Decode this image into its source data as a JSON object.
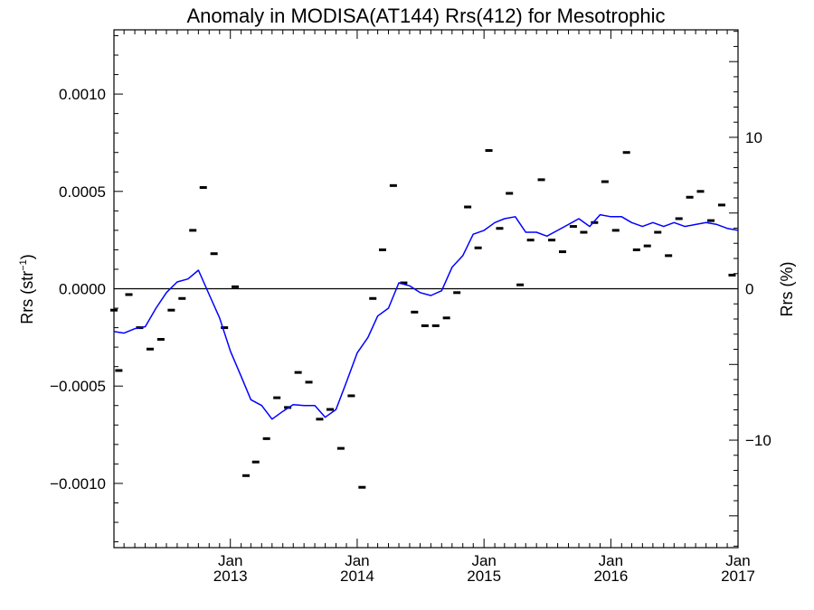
{
  "chart_data": {
    "type": "line",
    "title": "Anomaly in MODISA(AT144) Rrs(412) for Mesotrophic",
    "ylabel_left": "Rrs (str",
    "ylabel_left_sup": "−1",
    "ylabel_left_tail": ")",
    "ylabel_right": "Rrs (%)",
    "x_axis": {
      "type": "date",
      "min": "2012-02-01",
      "max": "2017-01-01"
    },
    "ylim_left": [
      -0.00133,
      0.00133
    ],
    "ylim_right": [
      -17.1,
      17.1
    ],
    "x_ticks": [
      {
        "date": "2013-01-01",
        "month": "Jan",
        "year": "2013"
      },
      {
        "date": "2014-01-01",
        "month": "Jan",
        "year": "2014"
      },
      {
        "date": "2015-01-01",
        "month": "Jan",
        "year": "2015"
      },
      {
        "date": "2016-01-01",
        "month": "Jan",
        "year": "2016"
      },
      {
        "date": "2017-01-01",
        "month": "Jan",
        "year": "2017"
      }
    ],
    "y_ticks_left": [
      {
        "value": 0.001,
        "label": "0.0010"
      },
      {
        "value": 0.0005,
        "label": "0.0005"
      },
      {
        "value": 0.0,
        "label": "0.0000"
      },
      {
        "value": -0.0005,
        "label": "−0.0005"
      },
      {
        "value": -0.001,
        "label": "−0.0010"
      }
    ],
    "y_ticks_right": [
      {
        "value": 10,
        "label": "10"
      },
      {
        "value": 0,
        "label": "0"
      },
      {
        "value": -10,
        "label": "−10"
      }
    ],
    "zero_line": true,
    "grid": false,
    "colors": {
      "line": "#0000ff",
      "points": "#000000",
      "axes": "#000000"
    },
    "series": [
      {
        "style": "points",
        "points": [
          {
            "x": "2012-02-01",
            "y": -0.00011
          },
          {
            "x": "2012-02-15",
            "y": -0.00042
          },
          {
            "x": "2012-03-15",
            "y": -3e-05
          },
          {
            "x": "2012-04-15",
            "y": -0.0002
          },
          {
            "x": "2012-05-15",
            "y": -0.00031
          },
          {
            "x": "2012-06-15",
            "y": -0.00026
          },
          {
            "x": "2012-07-15",
            "y": -0.00011
          },
          {
            "x": "2012-08-15",
            "y": -5e-05
          },
          {
            "x": "2012-09-15",
            "y": 0.0003
          },
          {
            "x": "2012-10-15",
            "y": 0.00052
          },
          {
            "x": "2012-11-15",
            "y": 0.00018
          },
          {
            "x": "2012-12-15",
            "y": -0.0002
          },
          {
            "x": "2013-01-15",
            "y": 1e-05
          },
          {
            "x": "2013-02-15",
            "y": -0.00096
          },
          {
            "x": "2013-03-15",
            "y": -0.00089
          },
          {
            "x": "2013-04-15",
            "y": -0.00077
          },
          {
            "x": "2013-05-15",
            "y": -0.00056
          },
          {
            "x": "2013-06-15",
            "y": -0.00061
          },
          {
            "x": "2013-07-15",
            "y": -0.00043
          },
          {
            "x": "2013-08-15",
            "y": -0.00048
          },
          {
            "x": "2013-09-15",
            "y": -0.00067
          },
          {
            "x": "2013-10-15",
            "y": -0.00062
          },
          {
            "x": "2013-11-15",
            "y": -0.00082
          },
          {
            "x": "2013-12-15",
            "y": -0.00055
          },
          {
            "x": "2014-01-15",
            "y": -0.00102
          },
          {
            "x": "2014-02-15",
            "y": -5e-05
          },
          {
            "x": "2014-03-15",
            "y": 0.0002
          },
          {
            "x": "2014-04-15",
            "y": 0.00053
          },
          {
            "x": "2014-05-15",
            "y": 3e-05
          },
          {
            "x": "2014-06-15",
            "y": -0.00012
          },
          {
            "x": "2014-07-15",
            "y": -0.00019
          },
          {
            "x": "2014-08-15",
            "y": -0.00019
          },
          {
            "x": "2014-09-15",
            "y": -0.00015
          },
          {
            "x": "2014-10-15",
            "y": -2e-05
          },
          {
            "x": "2014-11-15",
            "y": 0.00042
          },
          {
            "x": "2014-12-15",
            "y": 0.00021
          },
          {
            "x": "2015-01-15",
            "y": 0.00071
          },
          {
            "x": "2015-02-15",
            "y": 0.00031
          },
          {
            "x": "2015-03-15",
            "y": 0.00049
          },
          {
            "x": "2015-04-15",
            "y": 2e-05
          },
          {
            "x": "2015-05-15",
            "y": 0.00025
          },
          {
            "x": "2015-06-15",
            "y": 0.00056
          },
          {
            "x": "2015-07-15",
            "y": 0.00025
          },
          {
            "x": "2015-08-15",
            "y": 0.00019
          },
          {
            "x": "2015-09-15",
            "y": 0.00032
          },
          {
            "x": "2015-10-15",
            "y": 0.00029
          },
          {
            "x": "2015-11-15",
            "y": 0.00034
          },
          {
            "x": "2015-12-15",
            "y": 0.00055
          },
          {
            "x": "2016-01-15",
            "y": 0.0003
          },
          {
            "x": "2016-02-15",
            "y": 0.0007
          },
          {
            "x": "2016-03-15",
            "y": 0.0002
          },
          {
            "x": "2016-04-15",
            "y": 0.00022
          },
          {
            "x": "2016-05-15",
            "y": 0.00029
          },
          {
            "x": "2016-06-15",
            "y": 0.00017
          },
          {
            "x": "2016-07-15",
            "y": 0.00036
          },
          {
            "x": "2016-08-15",
            "y": 0.00047
          },
          {
            "x": "2016-09-15",
            "y": 0.0005
          },
          {
            "x": "2016-10-15",
            "y": 0.00035
          },
          {
            "x": "2016-11-15",
            "y": 0.00043
          },
          {
            "x": "2016-12-15",
            "y": 7e-05
          }
        ]
      },
      {
        "style": "line",
        "points": [
          {
            "x": "2012-02-01",
            "y": -0.00022
          },
          {
            "x": "2012-03-01",
            "y": -0.000228
          },
          {
            "x": "2012-04-01",
            "y": -0.000205
          },
          {
            "x": "2012-05-01",
            "y": -0.000195
          },
          {
            "x": "2012-06-01",
            "y": -0.0001
          },
          {
            "x": "2012-07-01",
            "y": -2e-05
          },
          {
            "x": "2012-08-01",
            "y": 3.5e-05
          },
          {
            "x": "2012-09-01",
            "y": 5e-05
          },
          {
            "x": "2012-10-01",
            "y": 9.5e-05
          },
          {
            "x": "2012-11-01",
            "y": -3e-05
          },
          {
            "x": "2012-12-01",
            "y": -0.00015
          },
          {
            "x": "2013-01-01",
            "y": -0.00032
          },
          {
            "x": "2013-02-01",
            "y": -0.00045
          },
          {
            "x": "2013-03-01",
            "y": -0.00057
          },
          {
            "x": "2013-04-01",
            "y": -0.0006
          },
          {
            "x": "2013-05-01",
            "y": -0.00067
          },
          {
            "x": "2013-06-01",
            "y": -0.00063
          },
          {
            "x": "2013-07-01",
            "y": -0.000595
          },
          {
            "x": "2013-08-01",
            "y": -0.0006
          },
          {
            "x": "2013-09-01",
            "y": -0.0006
          },
          {
            "x": "2013-10-01",
            "y": -0.00066
          },
          {
            "x": "2013-11-01",
            "y": -0.00062
          },
          {
            "x": "2013-12-01",
            "y": -0.00048
          },
          {
            "x": "2014-01-01",
            "y": -0.00033
          },
          {
            "x": "2014-02-01",
            "y": -0.00025
          },
          {
            "x": "2014-03-01",
            "y": -0.00014
          },
          {
            "x": "2014-04-01",
            "y": -0.0001
          },
          {
            "x": "2014-05-01",
            "y": 3e-05
          },
          {
            "x": "2014-06-01",
            "y": 1.5e-05
          },
          {
            "x": "2014-07-01",
            "y": -2e-05
          },
          {
            "x": "2014-08-01",
            "y": -3.5e-05
          },
          {
            "x": "2014-09-01",
            "y": -1e-05
          },
          {
            "x": "2014-10-01",
            "y": 0.00011
          },
          {
            "x": "2014-11-01",
            "y": 0.00017
          },
          {
            "x": "2014-12-01",
            "y": 0.00028
          },
          {
            "x": "2015-01-01",
            "y": 0.0003
          },
          {
            "x": "2015-02-01",
            "y": 0.00034
          },
          {
            "x": "2015-03-01",
            "y": 0.00036
          },
          {
            "x": "2015-04-01",
            "y": 0.00037
          },
          {
            "x": "2015-05-01",
            "y": 0.00029
          },
          {
            "x": "2015-06-01",
            "y": 0.00029
          },
          {
            "x": "2015-07-01",
            "y": 0.00027
          },
          {
            "x": "2015-08-01",
            "y": 0.0003
          },
          {
            "x": "2015-09-01",
            "y": 0.00033
          },
          {
            "x": "2015-10-01",
            "y": 0.00036
          },
          {
            "x": "2015-11-01",
            "y": 0.00032
          },
          {
            "x": "2015-12-01",
            "y": 0.00038
          },
          {
            "x": "2016-01-01",
            "y": 0.00037
          },
          {
            "x": "2016-02-01",
            "y": 0.00037
          },
          {
            "x": "2016-03-01",
            "y": 0.00034
          },
          {
            "x": "2016-04-01",
            "y": 0.00032
          },
          {
            "x": "2016-05-01",
            "y": 0.00034
          },
          {
            "x": "2016-06-01",
            "y": 0.00032
          },
          {
            "x": "2016-07-01",
            "y": 0.00034
          },
          {
            "x": "2016-08-01",
            "y": 0.00032
          },
          {
            "x": "2016-09-01",
            "y": 0.00033
          },
          {
            "x": "2016-10-01",
            "y": 0.00034
          },
          {
            "x": "2016-11-01",
            "y": 0.00033
          },
          {
            "x": "2016-12-01",
            "y": 0.00031
          },
          {
            "x": "2017-01-01",
            "y": 0.0003
          }
        ]
      }
    ]
  }
}
